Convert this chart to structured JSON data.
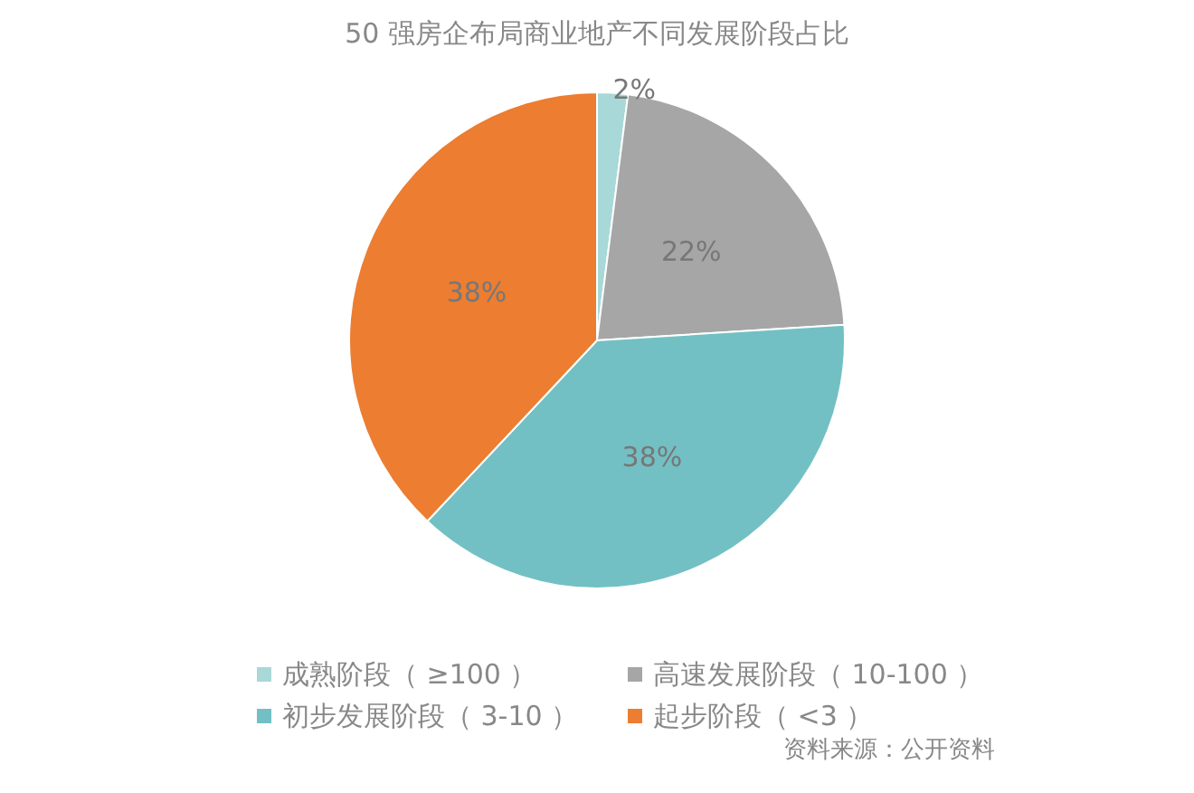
{
  "chart_data": {
    "type": "pie",
    "title": "50 强房企布局商业地产不同发展阶段占比",
    "categories": [
      "成熟阶段（ ≥100 ）",
      "高速发展阶段（ 10-100 ）",
      "初步发展阶段（ 3-10 ）",
      "起步阶段（ <3 ）"
    ],
    "values": [
      2,
      22,
      38,
      38
    ],
    "colors": [
      "#a8d8d8",
      "#a6a6a6",
      "#72c0c4",
      "#ec7d31"
    ],
    "value_labels": [
      "2%",
      "22%",
      "38%",
      "38%"
    ],
    "legend": "bottom",
    "annotations": [
      "资料来源：公开资料"
    ]
  }
}
